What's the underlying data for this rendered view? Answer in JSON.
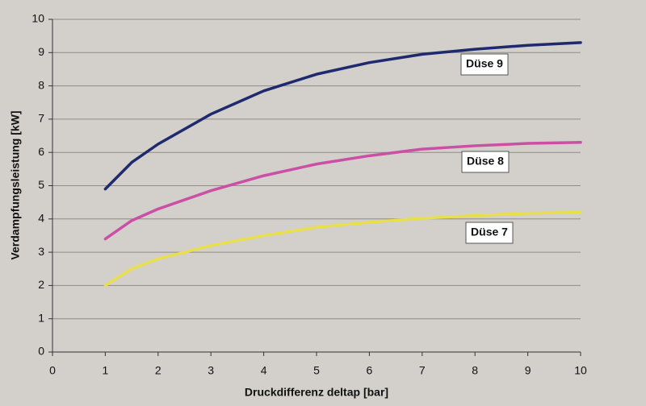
{
  "chart_data": {
    "type": "line",
    "x_label": "Druckdifferenz deltap [bar]",
    "y_label": "Verdampfungsleistung [kW]",
    "x": [
      1,
      1.5,
      2,
      3,
      4,
      5,
      6,
      7,
      8,
      9,
      10
    ],
    "series": [
      {
        "name": "Düse 9",
        "color": "#1f2a6e",
        "values": [
          4.9,
          5.7,
          6.25,
          7.15,
          7.85,
          8.35,
          8.7,
          8.95,
          9.1,
          9.22,
          9.3
        ]
      },
      {
        "name": "Düse 8",
        "color": "#cc4fa6",
        "values": [
          3.4,
          3.95,
          4.3,
          4.85,
          5.3,
          5.65,
          5.9,
          6.1,
          6.2,
          6.27,
          6.3
        ]
      },
      {
        "name": "Düse 7",
        "color": "#e8df4a",
        "values": [
          2.0,
          2.5,
          2.8,
          3.2,
          3.5,
          3.75,
          3.9,
          4.02,
          4.1,
          4.17,
          4.2
        ]
      }
    ],
    "xlim": [
      0,
      10
    ],
    "xticks": [
      0,
      1,
      2,
      3,
      4,
      5,
      6,
      7,
      8,
      9,
      10
    ],
    "ylim": [
      0,
      10
    ],
    "yticks": [
      0,
      1,
      2,
      3,
      4,
      5,
      6,
      7,
      8,
      9,
      10
    ],
    "grid": true
  }
}
